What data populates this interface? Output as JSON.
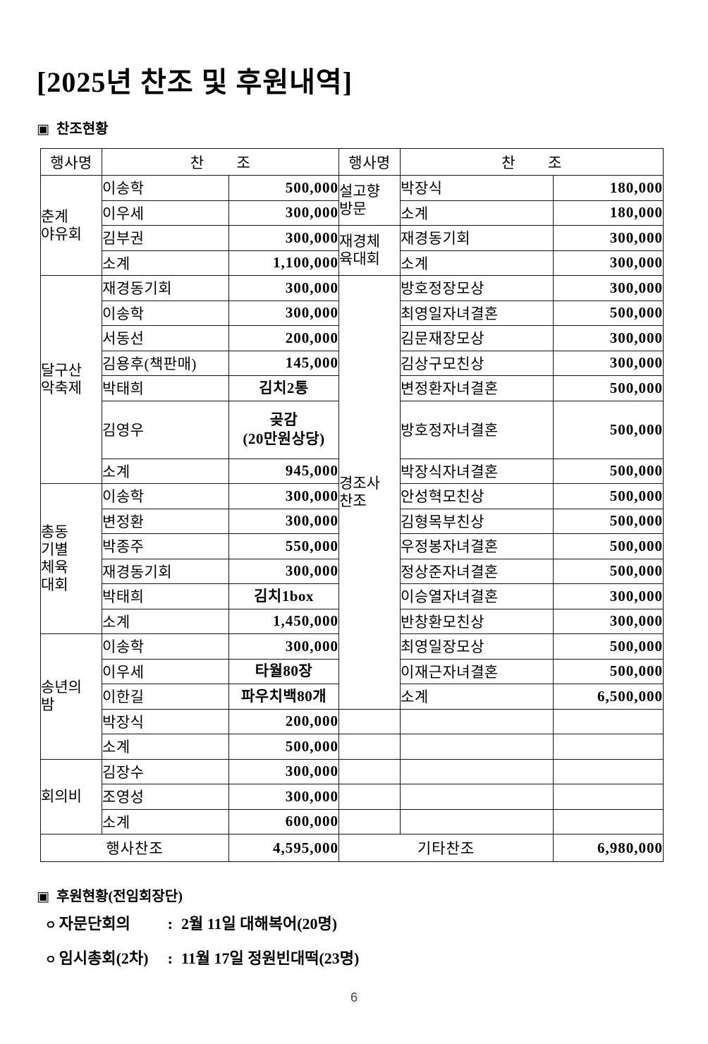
{
  "header": {
    "title": "[2025년 찬조 및 후원내역]",
    "square_bullet": "▣"
  },
  "sponsor_section": {
    "title": "찬조현황"
  },
  "table": {
    "col_header_event": "행사명",
    "col_header_sponsor": "찬        조",
    "left": {
      "groups": [
        {
          "label": "춘계\n야유회",
          "span": 4
        },
        {
          "label": "달구산\n악축제",
          "span": 7
        },
        {
          "label": "총동\n기별\n체육\n대회",
          "span": 6
        },
        {
          "label": "송년의\n밤",
          "span": 5
        },
        {
          "label": "회의비",
          "span": 3
        }
      ],
      "rows": [
        {
          "name": "이송학",
          "value": "500,000",
          "kind": "amount"
        },
        {
          "name": "이우세",
          "value": "300,000",
          "kind": "amount"
        },
        {
          "name": "김부권",
          "value": "300,000",
          "kind": "amount"
        },
        {
          "name": "소계",
          "value": "1,100,000",
          "kind": "amount"
        },
        {
          "name": "재경동기회",
          "value": "300,000",
          "kind": "amount"
        },
        {
          "name": "이송학",
          "value": "300,000",
          "kind": "amount"
        },
        {
          "name": "서동선",
          "value": "200,000",
          "kind": "amount"
        },
        {
          "name": "김용후(책판매)",
          "value": "145,000",
          "kind": "amount"
        },
        {
          "name": "박태희",
          "value": "김치2통",
          "kind": "item"
        },
        {
          "name": "김영우",
          "value": "곶감\n(20만원상당)",
          "kind": "item",
          "tall": true
        },
        {
          "name": "소계",
          "value": "945,000",
          "kind": "amount"
        },
        {
          "name": "이송학",
          "value": "300,000",
          "kind": "amount"
        },
        {
          "name": "변정환",
          "value": "300,000",
          "kind": "amount"
        },
        {
          "name": "박종주",
          "value": "550,000",
          "kind": "amount"
        },
        {
          "name": "재경동기회",
          "value": "300,000",
          "kind": "amount"
        },
        {
          "name": "박태희",
          "value": "김치1box",
          "kind": "item"
        },
        {
          "name": "소계",
          "value": "1,450,000",
          "kind": "amount"
        },
        {
          "name": "이송학",
          "value": "300,000",
          "kind": "amount"
        },
        {
          "name": "이우세",
          "value": "타월80장",
          "kind": "item"
        },
        {
          "name": "이한길",
          "value": "파우치백80개",
          "kind": "item"
        },
        {
          "name": "박장식",
          "value": "200,000",
          "kind": "amount"
        },
        {
          "name": "소계",
          "value": "500,000",
          "kind": "amount"
        },
        {
          "name": "김장수",
          "value": "300,000",
          "kind": "amount"
        },
        {
          "name": "조영성",
          "value": "300,000",
          "kind": "amount"
        },
        {
          "name": "소계",
          "value": "600,000",
          "kind": "amount"
        }
      ],
      "total_label": "행사찬조",
      "total_amount": "4,595,000"
    },
    "right": {
      "groups": [
        {
          "label": "설고향\n방문",
          "span": 2
        },
        {
          "label": "재경체\n육대회",
          "span": 2
        },
        {
          "label": "경조사\n찬조",
          "span": 16
        },
        {
          "label": "",
          "span": 1
        },
        {
          "label": "",
          "span": 1
        },
        {
          "label": "",
          "span": 1
        },
        {
          "label": "",
          "span": 1
        },
        {
          "label": "",
          "span": 1
        }
      ],
      "rows": [
        {
          "name": "박장식",
          "value": "180,000",
          "kind": "amount"
        },
        {
          "name": "소계",
          "value": "180,000",
          "kind": "amount"
        },
        {
          "name": "재경동기회",
          "value": "300,000",
          "kind": "amount"
        },
        {
          "name": "소계",
          "value": "300,000",
          "kind": "amount"
        },
        {
          "name": "방호정장모상",
          "value": "300,000",
          "kind": "amount"
        },
        {
          "name": "최영일자녀결혼",
          "value": "500,000",
          "kind": "amount"
        },
        {
          "name": "김문재장모상",
          "value": "300,000",
          "kind": "amount"
        },
        {
          "name": "김상구모친상",
          "value": "300,000",
          "kind": "amount"
        },
        {
          "name": "변정환자녀결혼",
          "value": "500,000",
          "kind": "amount"
        },
        {
          "name": "방호정자녀결혼",
          "value": "500,000",
          "kind": "amount",
          "tall": true
        },
        {
          "name": "박장식자녀결혼",
          "value": "500,000",
          "kind": "amount"
        },
        {
          "name": "안성혁모친상",
          "value": "500,000",
          "kind": "amount"
        },
        {
          "name": "김형목부친상",
          "value": "500,000",
          "kind": "amount"
        },
        {
          "name": "우정봉자녀결혼",
          "value": "500,000",
          "kind": "amount"
        },
        {
          "name": "정상준자녀결혼",
          "value": "500,000",
          "kind": "amount"
        },
        {
          "name": "이승열자녀결혼",
          "value": "300,000",
          "kind": "amount"
        },
        {
          "name": "반창환모친상",
          "value": "300,000",
          "kind": "amount"
        },
        {
          "name": "최영일장모상",
          "value": "500,000",
          "kind": "amount"
        },
        {
          "name": "이재근자녀결혼",
          "value": "500,000",
          "kind": "amount"
        },
        {
          "name": "소계",
          "value": "6,500,000",
          "kind": "amount"
        },
        {
          "name": "",
          "value": "",
          "kind": "empty"
        },
        {
          "name": "",
          "value": "",
          "kind": "empty"
        },
        {
          "name": "",
          "value": "",
          "kind": "empty"
        },
        {
          "name": "",
          "value": "",
          "kind": "empty"
        },
        {
          "name": "",
          "value": "",
          "kind": "empty"
        }
      ],
      "total_label": "기타찬조",
      "total_amount": "6,980,000"
    }
  },
  "support_section": {
    "title": "후원현황(전임회장단)",
    "square_bullet": "▣",
    "items": [
      {
        "bullet": "ㅇ",
        "label": "자문단회의",
        "colon": ":",
        "detail": "2월 11일  대해복어(20명)"
      },
      {
        "bullet": "ㅇ",
        "label": "임시총회(2차)",
        "colon": ":",
        "detail": "11월 17일  정원빈대떡(23명)"
      }
    ]
  },
  "footer": {
    "page_number": "6"
  }
}
